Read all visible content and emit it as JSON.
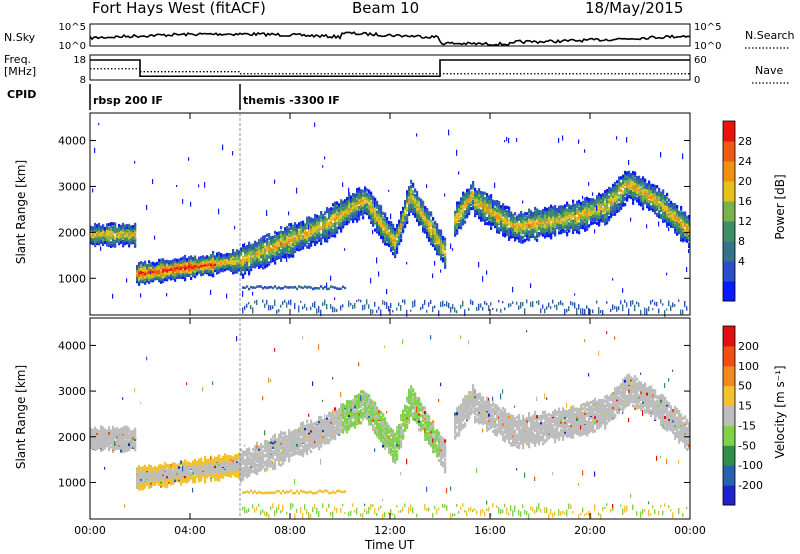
{
  "header": {
    "station": "Fort Hays West (fitACF)",
    "beam": "Beam 10",
    "date": "18/May/2015"
  },
  "strip_labels": {
    "nsky": "N.Sky",
    "freq": "Freq.",
    "freq_unit": "[MHz]",
    "cpid": "CPID",
    "nsearch": "N.Search",
    "nave": "Nave"
  },
  "cpid_entries": [
    {
      "start_h": 0,
      "label": "rbsp 200 IF"
    },
    {
      "start_h": 6,
      "label": "themis -3300 IF"
    }
  ],
  "chart_data": [
    {
      "type": "line",
      "name": "noise-strip",
      "left_axis_ticks": [
        "10^5",
        "10^0"
      ],
      "right_axis_ticks": [
        "10^5",
        "10^0"
      ],
      "x_range_h": [
        0,
        24
      ]
    },
    {
      "type": "line",
      "name": "freq-nave-strip",
      "left_axis_ticks": [
        "18",
        "8"
      ],
      "right_axis_ticks": [
        "60",
        "0"
      ],
      "ylim_left": [
        8,
        18
      ],
      "ylim_right": [
        0,
        60
      ],
      "freq_segments": [
        {
          "from_h": 0,
          "to_h": 2,
          "value": 16
        },
        {
          "from_h": 2,
          "to_h": 14,
          "value": 9.5
        },
        {
          "from_h": 14,
          "to_h": 24,
          "value": 16
        }
      ],
      "nave_segments": [
        {
          "from_h": 0,
          "to_h": 2,
          "value": 27
        },
        {
          "from_h": 2,
          "to_h": 6,
          "value": 20
        },
        {
          "from_h": 6,
          "to_h": 24,
          "value": 15
        }
      ]
    },
    {
      "type": "heatmap",
      "name": "power",
      "ylabel": "Slant Range [km]",
      "xlabel": "",
      "ylim": [
        200,
        4600
      ],
      "yticks": [
        1000,
        2000,
        3000,
        4000
      ],
      "colorbar": {
        "label": "Power [dB]",
        "ticks": [
          "28",
          "24",
          "20",
          "16",
          "12",
          "8",
          "4"
        ],
        "colors": [
          "#0a1aff",
          "#2a4fc7",
          "#35728b",
          "#3d8f6a",
          "#7ab24c",
          "#e6c01e",
          "#f09116",
          "#ee5a12",
          "#e8140c"
        ]
      },
      "echo_bands": [
        {
          "from_h": 0.0,
          "to_h": 1.8,
          "center_km": 1950,
          "width_km": 320,
          "level": 0.5
        },
        {
          "from_h": 1.9,
          "to_h": 6.0,
          "center_km": 1150,
          "width_km": 200,
          "level": 0.75
        },
        {
          "from_h": 6.0,
          "to_h": 10.0,
          "center_km": 1550,
          "width_km": 280,
          "level": 0.35
        },
        {
          "from_h": 10.0,
          "to_h": 14.0,
          "center_km": 2300,
          "width_km": 300,
          "level": 0.4
        },
        {
          "from_h": 15.0,
          "to_h": 24.0,
          "center_km": 2400,
          "width_km": 280,
          "level": 0.45
        }
      ]
    },
    {
      "type": "heatmap",
      "name": "velocity",
      "ylabel": "Slant Range [km]",
      "xlabel": "Time UT",
      "ylim": [
        200,
        4600
      ],
      "yticks": [
        1000,
        2000,
        3000,
        4000
      ],
      "colorbar": {
        "label": "Velocity [m s⁻¹]",
        "ticks": [
          "200",
          "100",
          "50",
          "15",
          "-15",
          "-50",
          "-100",
          "-200"
        ],
        "colors": [
          "#2023c8",
          "#2a60b0",
          "#2f8f4a",
          "#7ed34a",
          "#bdbdbd",
          "#f3c233",
          "#f08a20",
          "#ee5010",
          "#e01010"
        ]
      }
    }
  ],
  "time_axis": {
    "labels": [
      "00:00",
      "04:00",
      "08:00",
      "12:00",
      "16:00",
      "20:00",
      "00:00"
    ],
    "hours": [
      0,
      4,
      8,
      12,
      16,
      20,
      24
    ]
  }
}
